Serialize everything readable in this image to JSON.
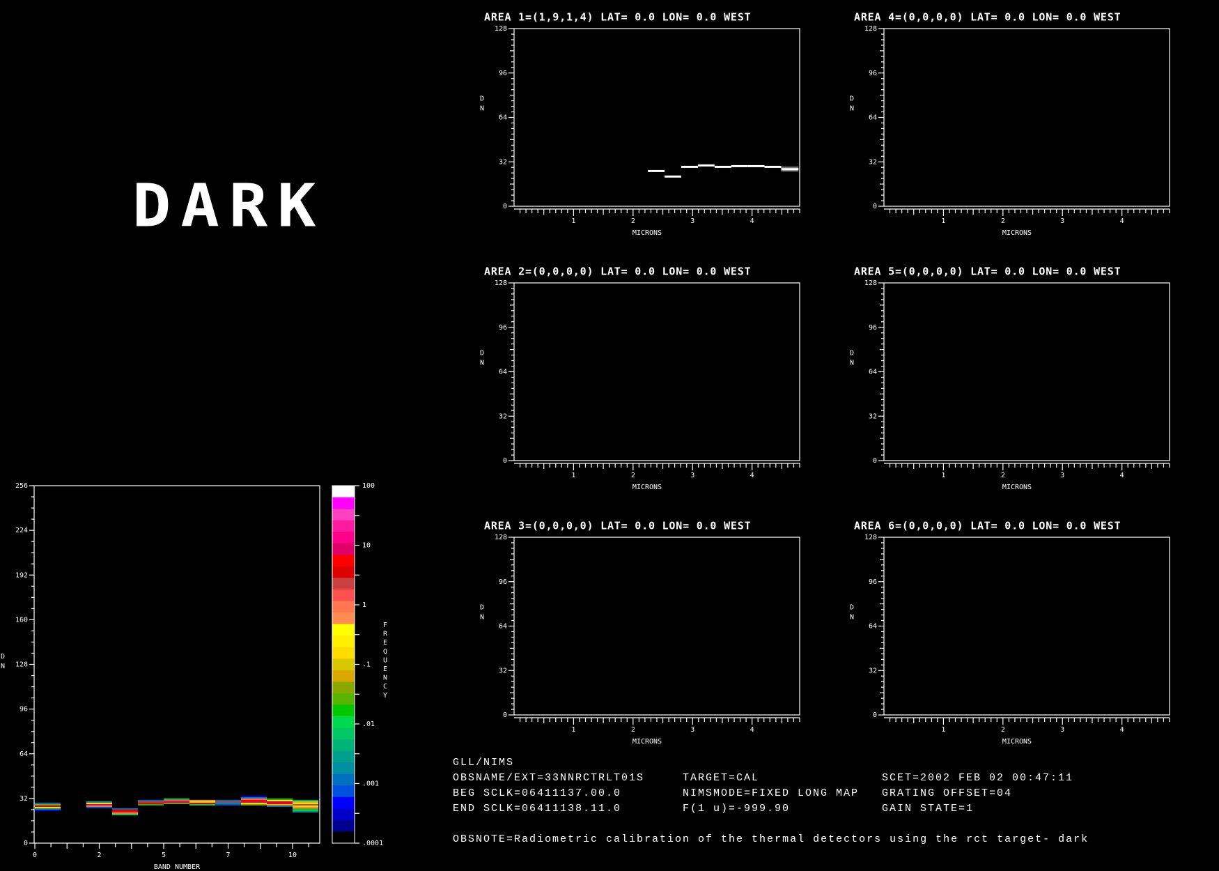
{
  "big_label": "DARK",
  "areas": [
    {
      "title": "AREA 1=(1,9,1,4) LAT=   0.0 LON=   0.0 WEST"
    },
    {
      "title": "AREA 2=(0,0,0,0) LAT=   0.0 LON=   0.0 WEST"
    },
    {
      "title": "AREA 3=(0,0,0,0) LAT=   0.0 LON=   0.0 WEST"
    },
    {
      "title": "AREA 4=(0,0,0,0) LAT=   0.0 LON=   0.0 WEST"
    },
    {
      "title": "AREA 5=(0,0,0,0) LAT=   0.0 LON=   0.0 WEST"
    },
    {
      "title": "AREA 6=(0,0,0,0) LAT=   0.0 LON=   0.0 WEST"
    }
  ],
  "info": {
    "instrument": "GLL/NIMS",
    "obsname": "OBSNAME/EXT=33NNRCTRLT01S",
    "beg_sclk": "BEG SCLK=06411137.00.0",
    "end_sclk": "END SCLK=06411138.11.0",
    "target": "TARGET=CAL",
    "nimsmode": "NIMSMODE=FIXED LONG MAP",
    "f1u": "F(1 u)=-999.90",
    "scet": "SCET=2002 FEB 02 00:47:11",
    "grating_offset": "GRATING OFFSET=04",
    "gain_state": "GAIN STATE=1",
    "obsnote": "OBSNOTE=Radiometric calibration of the thermal detectors using the rct target- dark"
  },
  "chart_data": [
    {
      "type": "line",
      "panel": "area-spectra",
      "xlabel": "MICRONS",
      "ylabel": "D N",
      "xlim": [
        0,
        4.8
      ],
      "ylim": [
        0,
        128
      ],
      "x_tick_labels": [
        "1",
        "2",
        "3",
        "4"
      ],
      "y_tick_labels": [
        "0",
        "32",
        "64",
        "96",
        "128"
      ],
      "series": [
        {
          "area": 1,
          "color": "#ffffff",
          "steps": [
            {
              "x0": 2.25,
              "x1": 2.53,
              "y": 25.4
            },
            {
              "x0": 2.53,
              "x1": 2.81,
              "y": 21.4
            },
            {
              "x0": 2.81,
              "x1": 3.09,
              "y": 28.4
            },
            {
              "x0": 3.09,
              "x1": 3.37,
              "y": 29.4
            },
            {
              "x0": 3.37,
              "x1": 3.65,
              "y": 28.4
            },
            {
              "x0": 3.65,
              "x1": 3.93,
              "y": 28.9
            },
            {
              "x0": 3.93,
              "x1": 4.21,
              "y": 28.9
            },
            {
              "x0": 4.21,
              "x1": 4.49,
              "y": 28.4
            },
            {
              "x0": 4.49,
              "x1": 4.78,
              "y": 26.7,
              "spread": [
                25,
                28.6
              ]
            }
          ]
        }
      ]
    },
    {
      "type": "heatmap",
      "panel": "band-histogram",
      "xlabel": "BAND NUMBER",
      "ylabel": "D N",
      "xlim": [
        0,
        11.04
      ],
      "ylim": [
        0,
        256
      ],
      "x_tick_labels": [
        "0",
        "2",
        "5",
        "7",
        "10"
      ],
      "y_tick_labels": [
        "0",
        "32",
        "64",
        "96",
        "128",
        "160",
        "192",
        "224",
        "256"
      ],
      "bands": [
        {
          "band": 0,
          "cells": [
            [
              23,
              0.0005
            ],
            [
              24,
              0.003
            ],
            [
              25,
              0.2
            ],
            [
              26,
              3
            ],
            [
              27,
              0.05
            ],
            [
              28,
              0.001
            ]
          ]
        },
        {
          "band": 2,
          "cells": [
            [
              25,
              0.0008
            ],
            [
              26,
              0.5
            ],
            [
              27,
              8
            ],
            [
              28,
              0.3
            ],
            [
              29,
              0.002
            ]
          ]
        },
        {
          "band": 3,
          "cells": [
            [
              20,
              0.01
            ],
            [
              21,
              0.5
            ],
            [
              22,
              6
            ],
            [
              23,
              3
            ],
            [
              24,
              0.001
            ]
          ]
        },
        {
          "band": 4,
          "cells": [
            [
              27,
              0.02
            ],
            [
              28,
              6
            ],
            [
              29,
              2
            ],
            [
              30,
              0.001
            ]
          ]
        },
        {
          "band": 5,
          "cells": [
            [
              28,
              0.05
            ],
            [
              29,
              8
            ],
            [
              30,
              1.5
            ],
            [
              31,
              0.01
            ]
          ]
        },
        {
          "band": 6,
          "cells": [
            [
              27,
              0.01
            ],
            [
              28,
              4
            ],
            [
              29,
              0.3
            ],
            [
              30,
              0.5
            ]
          ]
        },
        {
          "band": 7,
          "cells": [
            [
              27,
              0.0008
            ],
            [
              28,
              0.002
            ],
            [
              29,
              2
            ],
            [
              30,
              0.001
            ]
          ]
        },
        {
          "band": 8,
          "cells": [
            [
              27,
              0.05
            ],
            [
              28,
              0.2
            ],
            [
              29,
              7
            ],
            [
              30,
              5
            ],
            [
              31,
              0.5
            ],
            [
              32,
              0.001
            ],
            [
              33,
              0.0003
            ]
          ]
        },
        {
          "band": 9,
          "cells": [
            [
              26,
              0.001
            ],
            [
              27,
              0.1
            ],
            [
              28,
              6
            ],
            [
              29,
              8
            ],
            [
              30,
              0.3
            ],
            [
              31,
              0.02
            ]
          ]
        },
        {
          "band": 10,
          "cells": [
            [
              22,
              0.002
            ],
            [
              23,
              0.01
            ],
            [
              24,
              0.03
            ],
            [
              25,
              0.5
            ],
            [
              26,
              0.3
            ],
            [
              27,
              2
            ],
            [
              28,
              0.3
            ],
            [
              29,
              0.1
            ],
            [
              30,
              0.004
            ]
          ]
        }
      ],
      "colorbar": {
        "label": "FREQUENCY",
        "scale": "log",
        "range": [
          0.0001,
          100
        ],
        "tick_labels": [
          "100",
          "10",
          "1",
          ".1",
          ".01",
          ".001",
          ".0001"
        ],
        "colors_top_to_bottom": [
          "#ffffff",
          "#ff00ff",
          "#ff40c0",
          "#ff1aa0",
          "#ff0088",
          "#e0006a",
          "#ff0000",
          "#dd0000",
          "#c84040",
          "#ff5050",
          "#ff7850",
          "#ff8c50",
          "#ffff00",
          "#fff000",
          "#ffdc00",
          "#d8c800",
          "#dca800",
          "#88a800",
          "#58b400",
          "#00c800",
          "#00d850",
          "#00c864",
          "#00b478",
          "#00a08c",
          "#0090a0",
          "#0070c0",
          "#0050e0",
          "#0000ff",
          "#0000c8",
          "#000090",
          "#000000"
        ]
      }
    }
  ]
}
